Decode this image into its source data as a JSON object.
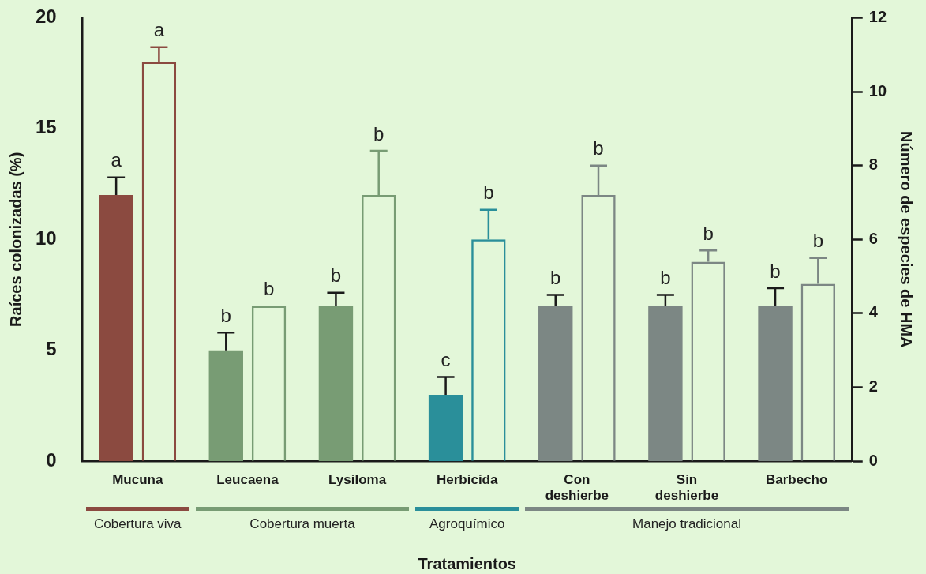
{
  "chart_data": {
    "type": "bar",
    "xlabel": "Tratamientos",
    "ylabel": "Raíces colonizadas (%)",
    "y2label": "Número de especies de HMA",
    "categories": [
      "Mucuna",
      "Leucaena",
      "Lysiloma",
      "Herbicida",
      "Con deshierbe",
      "Sin deshierbe",
      "Barbecho"
    ],
    "series": [
      {
        "colors": [
          "#8b4a40",
          "#789c74",
          "#789c74",
          "#2a8f9a",
          "#7c8784",
          "#7c8784",
          "#7c8784"
        ],
        "values": [
          12,
          5,
          7,
          3,
          7,
          7,
          7
        ],
        "errors": [
          0.8,
          0.8,
          0.6,
          0.8,
          0.5,
          0.5,
          0.8
        ],
        "value_labels": [
          "a",
          "b",
          "b",
          "c",
          "b",
          "b",
          "b"
        ]
      },
      {
        "colors": [
          "#8b4a40",
          "#789c74",
          "#789c74",
          "#2a8f9a",
          "#7c8784",
          "#7c8784",
          "#7c8784"
        ],
        "axis": "y2",
        "values": [
          10.8,
          4.2,
          7.2,
          6,
          7.2,
          5.4,
          4.8
        ],
        "errors": [
          0.4,
          null,
          1.2,
          0.8,
          0.8,
          0.3,
          0.7
        ],
        "value_labels": [
          "a",
          "b",
          "b",
          "b",
          "b",
          "b",
          "b"
        ]
      }
    ],
    "ylim": [
      0,
      20
    ],
    "yticks": [
      0,
      5,
      10,
      15,
      20
    ],
    "y2lim": [
      0,
      12
    ],
    "y2ticks": [
      0,
      2,
      4,
      6,
      8,
      10,
      12
    ],
    "annotations": [
      "Cobertura viva",
      "Cobertura muerta",
      "Agroquímico",
      "Manejo tradicional"
    ],
    "grid": false,
    "legend": false
  }
}
